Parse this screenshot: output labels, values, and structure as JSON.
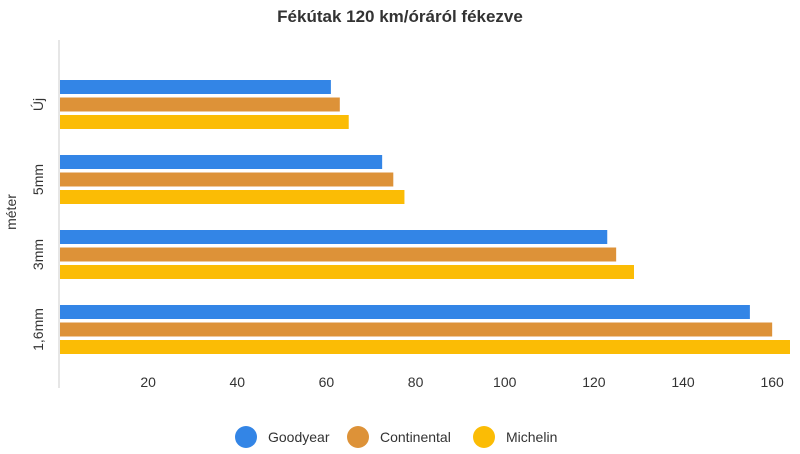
{
  "chart_data": {
    "type": "bar",
    "orientation": "horizontal",
    "title": "Fékútak 120 km/óráról fékezve",
    "xlabel": "",
    "ylabel": "méter",
    "categories": [
      "Új",
      "5mm",
      "3mm",
      "1,6mm"
    ],
    "series": [
      {
        "name": "Goodyear",
        "color": "#3385e6",
        "values": [
          61,
          72.5,
          123,
          155
        ]
      },
      {
        "name": "Continental",
        "color": "#dd9238",
        "values": [
          63,
          75,
          125,
          160
        ]
      },
      {
        "name": "Michelin",
        "color": "#fbbc05",
        "values": [
          65,
          77.5,
          129,
          164
        ]
      }
    ],
    "xlim": [
      0,
      164
    ],
    "xticks": [
      20,
      40,
      60,
      80,
      100,
      120,
      140,
      160
    ],
    "grid": false,
    "legend": "bottom"
  }
}
